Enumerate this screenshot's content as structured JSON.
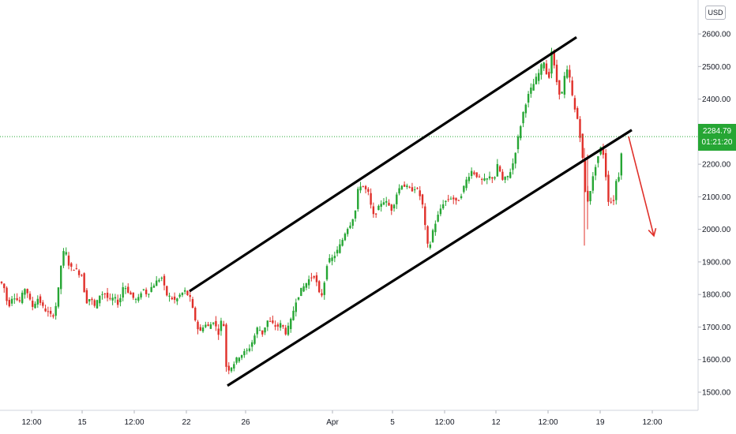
{
  "currency": "USD",
  "last_price": {
    "price": "2284.79",
    "countdown": "01:21:20",
    "value": 2284.79,
    "line_color": "#26a634",
    "tag_color": "#26a634"
  },
  "colors": {
    "up_candle": "#26a634",
    "down_candle": "#e0302a",
    "trend_lines": "#000000",
    "arrow": "#e0302a",
    "axis_text": "#131722"
  },
  "chart_data": {
    "type": "candlestick",
    "title": "",
    "xlabel": "",
    "ylabel": "",
    "ylim": [
      1430,
      2670
    ],
    "y_ticks": [
      1500,
      1600,
      1700,
      1800,
      1900,
      2000,
      2100,
      2200,
      2300,
      2400,
      2500,
      2600
    ],
    "y_tick_labels": [
      "1500.00",
      "1600.00",
      "1700.00",
      "1800.00",
      "1900.00",
      "2000.00",
      "2100.00",
      "2200.00",
      "2300.00",
      "2400.00",
      "2500.00",
      "2600.00"
    ],
    "x_tick_labels": [
      "12:00",
      "15",
      "12:00",
      "22",
      "26",
      "Apr",
      "5",
      "12:00",
      "12",
      "12:00",
      "19",
      "12:00"
    ],
    "grid": false,
    "price_path": [
      [
        0,
        1840
      ],
      [
        6,
        1830
      ],
      [
        12,
        1760
      ],
      [
        18,
        1800
      ],
      [
        26,
        1775
      ],
      [
        34,
        1825
      ],
      [
        42,
        1760
      ],
      [
        50,
        1790
      ],
      [
        56,
        1760
      ],
      [
        62,
        1745
      ],
      [
        68,
        1730
      ],
      [
        74,
        1780
      ],
      [
        80,
        1915
      ],
      [
        84,
        1940
      ],
      [
        90,
        1880
      ],
      [
        96,
        1880
      ],
      [
        102,
        1865
      ],
      [
        106,
        1860
      ],
      [
        110,
        1775
      ],
      [
        116,
        1790
      ],
      [
        122,
        1760
      ],
      [
        128,
        1800
      ],
      [
        134,
        1805
      ],
      [
        140,
        1780
      ],
      [
        146,
        1790
      ],
      [
        152,
        1770
      ],
      [
        158,
        1830
      ],
      [
        164,
        1810
      ],
      [
        170,
        1790
      ],
      [
        176,
        1780
      ],
      [
        182,
        1820
      ],
      [
        188,
        1800
      ],
      [
        194,
        1825
      ],
      [
        200,
        1840
      ],
      [
        206,
        1855
      ],
      [
        212,
        1800
      ],
      [
        218,
        1790
      ],
      [
        224,
        1780
      ],
      [
        230,
        1800
      ],
      [
        236,
        1810
      ],
      [
        242,
        1790
      ],
      [
        248,
        1730
      ],
      [
        254,
        1680
      ],
      [
        260,
        1710
      ],
      [
        266,
        1700
      ],
      [
        272,
        1720
      ],
      [
        278,
        1680
      ],
      [
        284,
        1740
      ],
      [
        288,
        1580
      ],
      [
        292,
        1570
      ],
      [
        298,
        1590
      ],
      [
        304,
        1610
      ],
      [
        310,
        1620
      ],
      [
        316,
        1630
      ],
      [
        322,
        1660
      ],
      [
        328,
        1700
      ],
      [
        334,
        1680
      ],
      [
        340,
        1720
      ],
      [
        346,
        1710
      ],
      [
        352,
        1700
      ],
      [
        358,
        1710
      ],
      [
        364,
        1680
      ],
      [
        370,
        1720
      ],
      [
        376,
        1780
      ],
      [
        382,
        1810
      ],
      [
        388,
        1830
      ],
      [
        394,
        1850
      ],
      [
        400,
        1860
      ],
      [
        406,
        1800
      ],
      [
        410,
        1800
      ],
      [
        416,
        1900
      ],
      [
        422,
        1910
      ],
      [
        428,
        1930
      ],
      [
        434,
        1960
      ],
      [
        440,
        2000
      ],
      [
        446,
        2020
      ],
      [
        452,
        2060
      ],
      [
        456,
        2140
      ],
      [
        462,
        2130
      ],
      [
        468,
        2110
      ],
      [
        474,
        2040
      ],
      [
        480,
        2060
      ],
      [
        486,
        2090
      ],
      [
        492,
        2080
      ],
      [
        498,
        2060
      ],
      [
        504,
        2110
      ],
      [
        510,
        2140
      ],
      [
        516,
        2130
      ],
      [
        522,
        2120
      ],
      [
        528,
        2130
      ],
      [
        534,
        2100
      ],
      [
        538,
        2060
      ],
      [
        542,
        1950
      ],
      [
        546,
        1950
      ],
      [
        550,
        2000
      ],
      [
        556,
        2040
      ],
      [
        562,
        2080
      ],
      [
        568,
        2090
      ],
      [
        574,
        2100
      ],
      [
        580,
        2080
      ],
      [
        586,
        2110
      ],
      [
        592,
        2150
      ],
      [
        598,
        2180
      ],
      [
        604,
        2170
      ],
      [
        610,
        2150
      ],
      [
        616,
        2150
      ],
      [
        622,
        2160
      ],
      [
        628,
        2160
      ],
      [
        632,
        2200
      ],
      [
        638,
        2150
      ],
      [
        644,
        2160
      ],
      [
        650,
        2190
      ],
      [
        656,
        2260
      ],
      [
        660,
        2310
      ],
      [
        666,
        2380
      ],
      [
        672,
        2420
      ],
      [
        678,
        2450
      ],
      [
        684,
        2480
      ],
      [
        690,
        2520
      ],
      [
        696,
        2450
      ],
      [
        700,
        2550
      ],
      [
        706,
        2460
      ],
      [
        712,
        2400
      ],
      [
        718,
        2490
      ],
      [
        722,
        2480
      ],
      [
        728,
        2380
      ],
      [
        734,
        2330
      ],
      [
        738,
        2250
      ],
      [
        740,
        2200
      ],
      [
        744,
        2070
      ],
      [
        750,
        2130
      ],
      [
        756,
        2200
      ],
      [
        762,
        2250
      ],
      [
        766,
        2230
      ],
      [
        772,
        2090
      ],
      [
        778,
        2080
      ],
      [
        782,
        2150
      ],
      [
        786,
        2170
      ],
      [
        790,
        2285
      ]
    ],
    "annotations": [
      {
        "type": "channel-upper-line",
        "from": [
          240,
          1810
        ],
        "to": [
          730,
          2590
        ]
      },
      {
        "type": "channel-lower-line",
        "from": [
          288,
          1520
        ],
        "to": [
          800,
          2305
        ]
      },
      {
        "type": "arrow",
        "from": [
          796,
          2285
        ],
        "to": [
          828,
          1980
        ]
      }
    ]
  }
}
